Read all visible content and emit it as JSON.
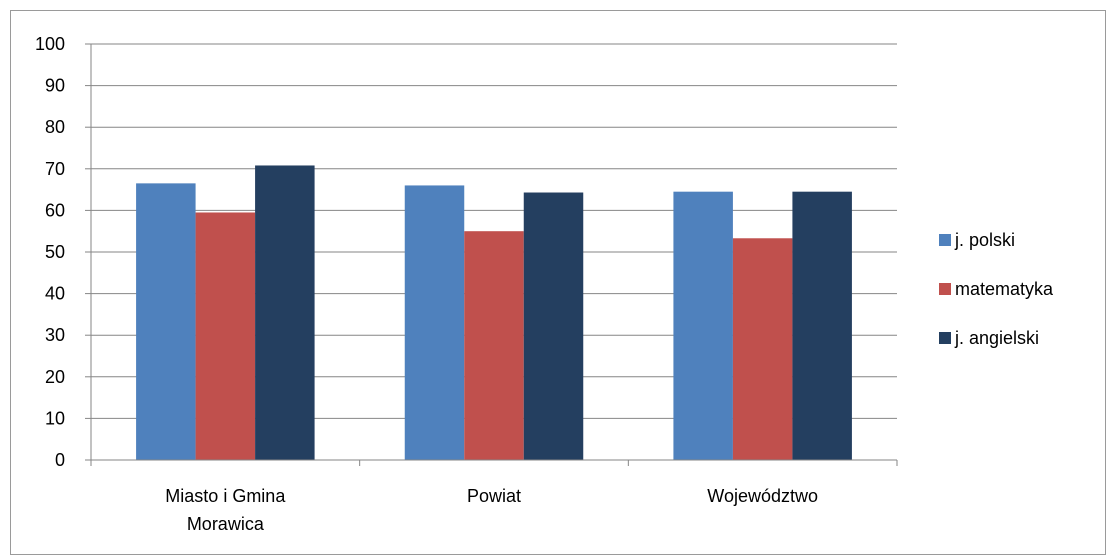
{
  "chart_data": {
    "type": "bar",
    "categories": [
      [
        "Miasto i Gmina",
        "Morawica"
      ],
      [
        "Powiat"
      ],
      [
        "Województwo"
      ]
    ],
    "series": [
      {
        "name": "j. polski",
        "color": "#4F81BD",
        "values": [
          66.5,
          66,
          64.5
        ]
      },
      {
        "name": "matematyka",
        "color": "#C0504D",
        "values": [
          59.5,
          55,
          53.3
        ]
      },
      {
        "name": "j. angielski",
        "color": "#243F60",
        "values": [
          70.8,
          64.3,
          64.5
        ]
      }
    ],
    "ylim": [
      0,
      100
    ],
    "yticks": [
      0,
      10,
      20,
      30,
      40,
      50,
      60,
      70,
      80,
      90,
      100
    ],
    "grid": true,
    "legend_position": "right",
    "title": "",
    "xlabel": "",
    "ylabel": ""
  }
}
